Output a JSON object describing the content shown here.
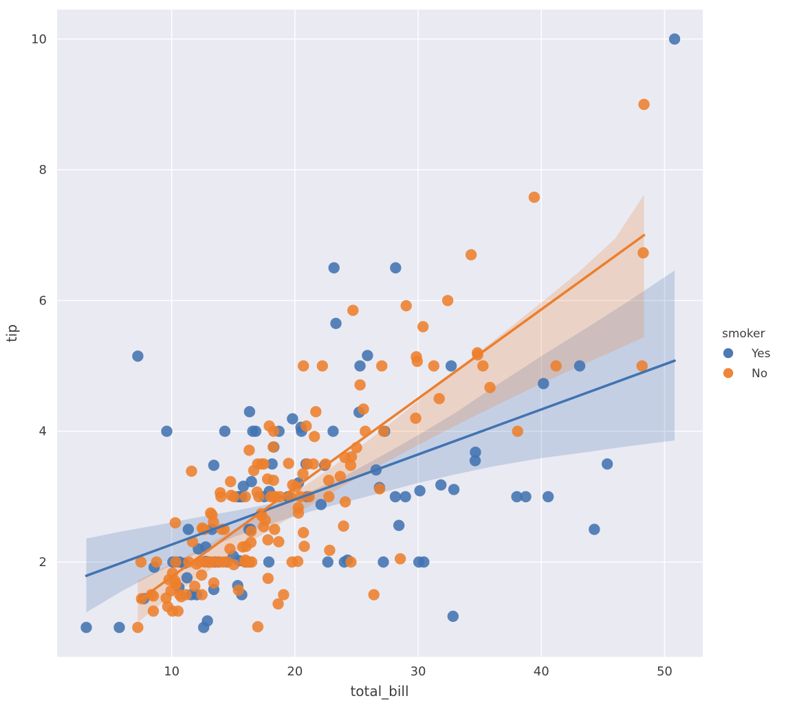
{
  "chart_data": {
    "type": "scatter",
    "title": "",
    "xlabel": "total_bill",
    "ylabel": "tip",
    "xlim": [
      0.7,
      53.1
    ],
    "ylim": [
      0.55,
      10.45
    ],
    "xticks": [
      10,
      20,
      30,
      40,
      50
    ],
    "yticks": [
      2,
      4,
      6,
      8,
      10
    ],
    "grid": true,
    "plot_bg": "#eaeaf2",
    "grid_color": "#ffffff",
    "legend": {
      "title": "smoker",
      "position": "right-outside",
      "entries": [
        {
          "label": "Yes",
          "color": "#4273b0"
        },
        {
          "label": "No",
          "color": "#ed7f2c"
        }
      ]
    },
    "series": [
      {
        "name": "Yes",
        "color": "#4273b0",
        "marker_opacity": 0.88,
        "regression_line": {
          "x1": 3.07,
          "y1": 1.79,
          "x2": 50.81,
          "y2": 5.08
        },
        "ci_band": [
          [
            3.07,
            1.23,
            2.36
          ],
          [
            6,
            1.56,
            2.47
          ],
          [
            9,
            1.86,
            2.57
          ],
          [
            12,
            2.13,
            2.68
          ],
          [
            15,
            2.38,
            2.78
          ],
          [
            18,
            2.58,
            2.89
          ],
          [
            21,
            2.76,
            3.06
          ],
          [
            24,
            2.91,
            3.31
          ],
          [
            27,
            3.06,
            3.62
          ],
          [
            30,
            3.21,
            3.94
          ],
          [
            33,
            3.34,
            4.28
          ],
          [
            36,
            3.46,
            4.66
          ],
          [
            40,
            3.59,
            5.15
          ],
          [
            44,
            3.69,
            5.62
          ],
          [
            47,
            3.77,
            5.98
          ],
          [
            50.81,
            3.86,
            6.46
          ]
        ],
        "points": [
          [
            38.01,
            3.0
          ],
          [
            11.24,
            1.76
          ],
          [
            20.29,
            3.21
          ],
          [
            13.81,
            2.0
          ],
          [
            11.02,
            1.98
          ],
          [
            18.29,
            3.76
          ],
          [
            3.07,
            1.0
          ],
          [
            15.01,
            2.09
          ],
          [
            26.86,
            3.14
          ],
          [
            25.28,
            5.0
          ],
          [
            17.92,
            3.08
          ],
          [
            19.44,
            3.0
          ],
          [
            32.68,
            5.0
          ],
          [
            28.97,
            3.0
          ],
          [
            5.75,
            1.0
          ],
          [
            16.32,
            4.3
          ],
          [
            40.17,
            4.73
          ],
          [
            27.28,
            4.0
          ],
          [
            12.03,
            1.5
          ],
          [
            21.01,
            3.0
          ],
          [
            11.35,
            2.5
          ],
          [
            15.38,
            3.0
          ],
          [
            44.3,
            2.5
          ],
          [
            22.42,
            3.48
          ],
          [
            15.36,
            1.64
          ],
          [
            20.49,
            4.06
          ],
          [
            25.21,
            4.29
          ],
          [
            14.31,
            4.0
          ],
          [
            10.59,
            1.61
          ],
          [
            10.63,
            2.0
          ],
          [
            50.81,
            10.0
          ],
          [
            15.81,
            3.16
          ],
          [
            7.25,
            5.15
          ],
          [
            31.85,
            3.18
          ],
          [
            16.82,
            4.0
          ],
          [
            32.9,
            3.11
          ],
          [
            17.89,
            2.0
          ],
          [
            14.48,
            2.0
          ],
          [
            9.6,
            4.0
          ],
          [
            34.63,
            3.55
          ],
          [
            34.65,
            3.68
          ],
          [
            23.33,
            5.65
          ],
          [
            45.35,
            3.5
          ],
          [
            23.17,
            6.5
          ],
          [
            40.55,
            3.0
          ],
          [
            20.9,
            3.5
          ],
          [
            30.46,
            2.0
          ],
          [
            18.15,
            3.5
          ],
          [
            23.1,
            4.0
          ],
          [
            15.69,
            1.5
          ],
          [
            19.81,
            4.19
          ],
          [
            28.44,
            2.56
          ],
          [
            15.48,
            2.02
          ],
          [
            16.58,
            4.0
          ],
          [
            10.34,
            2.0
          ],
          [
            43.11,
            5.0
          ],
          [
            13.0,
            2.0
          ],
          [
            13.51,
            2.0
          ],
          [
            18.71,
            4.0
          ],
          [
            12.74,
            2.01
          ],
          [
            13.0,
            2.0
          ],
          [
            16.4,
            2.5
          ],
          [
            20.53,
            4.0
          ],
          [
            16.47,
            3.23
          ],
          [
            26.59,
            3.41
          ],
          [
            38.73,
            3.0
          ],
          [
            24.27,
            2.03
          ],
          [
            12.76,
            2.23
          ],
          [
            30.06,
            2.0
          ],
          [
            25.89,
            5.16
          ],
          [
            13.27,
            2.5
          ],
          [
            28.17,
            6.5
          ],
          [
            12.9,
            1.1
          ],
          [
            28.15,
            3.0
          ],
          [
            11.59,
            1.5
          ],
          [
            7.74,
            1.44
          ],
          [
            30.14,
            3.09
          ],
          [
            12.16,
            2.2
          ],
          [
            13.42,
            3.48
          ],
          [
            8.58,
            1.92
          ],
          [
            13.42,
            1.58
          ],
          [
            16.27,
            2.5
          ],
          [
            10.09,
            2.0
          ],
          [
            22.12,
            2.88
          ],
          [
            24.01,
            2.0
          ],
          [
            15.69,
            3.0
          ],
          [
            15.53,
            3.0
          ],
          [
            12.6,
            1.0
          ],
          [
            32.83,
            1.17
          ],
          [
            27.18,
            2.0
          ],
          [
            22.67,
            2.0
          ],
          [
            17.51,
            3.0
          ],
          [
            16.0,
            2.0
          ]
        ]
      },
      {
        "name": "No",
        "color": "#ed7f2c",
        "marker_opacity": 0.88,
        "regression_line": {
          "x1": 7.25,
          "y1": 1.4,
          "x2": 48.33,
          "y2": 7.0
        },
        "ci_band": [
          [
            7.25,
            1.08,
            1.72
          ],
          [
            9,
            1.34,
            1.88
          ],
          [
            11,
            1.61,
            2.07
          ],
          [
            13,
            1.87,
            2.27
          ],
          [
            15,
            2.13,
            2.49
          ],
          [
            17,
            2.38,
            2.72
          ],
          [
            19,
            2.61,
            2.95
          ],
          [
            21,
            2.84,
            3.19
          ],
          [
            23,
            3.06,
            3.45
          ],
          [
            25,
            3.28,
            3.72
          ],
          [
            27,
            3.49,
            4.01
          ],
          [
            29,
            3.69,
            4.31
          ],
          [
            31,
            3.89,
            4.62
          ],
          [
            34,
            4.18,
            5.07
          ],
          [
            37,
            4.46,
            5.52
          ],
          [
            40,
            4.73,
            5.97
          ],
          [
            43,
            4.99,
            6.43
          ],
          [
            46,
            5.24,
            6.95
          ],
          [
            48.33,
            5.44,
            7.62
          ]
        ],
        "points": [
          [
            16.99,
            1.01
          ],
          [
            10.34,
            1.66
          ],
          [
            21.01,
            3.5
          ],
          [
            23.68,
            3.31
          ],
          [
            24.59,
            3.61
          ],
          [
            25.29,
            4.71
          ],
          [
            8.77,
            2.0
          ],
          [
            26.88,
            3.12
          ],
          [
            15.04,
            1.96
          ],
          [
            14.78,
            3.23
          ],
          [
            10.27,
            1.71
          ],
          [
            35.26,
            5.0
          ],
          [
            15.42,
            1.57
          ],
          [
            18.43,
            3.0
          ],
          [
            14.83,
            3.02
          ],
          [
            21.58,
            3.92
          ],
          [
            10.33,
            1.67
          ],
          [
            16.29,
            3.71
          ],
          [
            16.97,
            3.5
          ],
          [
            20.65,
            3.35
          ],
          [
            17.92,
            4.08
          ],
          [
            20.29,
            2.75
          ],
          [
            15.77,
            2.23
          ],
          [
            39.42,
            7.58
          ],
          [
            19.82,
            3.18
          ],
          [
            17.81,
            2.34
          ],
          [
            13.37,
            2.0
          ],
          [
            12.69,
            2.0
          ],
          [
            21.7,
            4.3
          ],
          [
            19.65,
            3.0
          ],
          [
            9.55,
            1.45
          ],
          [
            18.35,
            2.5
          ],
          [
            15.06,
            3.0
          ],
          [
            20.69,
            2.45
          ],
          [
            17.78,
            3.27
          ],
          [
            24.06,
            3.6
          ],
          [
            16.31,
            2.0
          ],
          [
            16.93,
            3.07
          ],
          [
            18.69,
            2.31
          ],
          [
            31.27,
            5.0
          ],
          [
            16.04,
            2.24
          ],
          [
            17.46,
            2.54
          ],
          [
            13.94,
            3.06
          ],
          [
            9.68,
            1.32
          ],
          [
            30.4,
            5.6
          ],
          [
            18.29,
            3.0
          ],
          [
            22.23,
            5.0
          ],
          [
            32.4,
            6.0
          ],
          [
            28.55,
            2.05
          ],
          [
            18.04,
            3.0
          ],
          [
            12.54,
            2.5
          ],
          [
            10.29,
            2.6
          ],
          [
            34.81,
            5.2
          ],
          [
            9.94,
            1.56
          ],
          [
            25.56,
            4.34
          ],
          [
            19.49,
            3.51
          ],
          [
            26.41,
            1.5
          ],
          [
            48.27,
            6.73
          ],
          [
            17.59,
            2.64
          ],
          [
            20.08,
            3.15
          ],
          [
            16.45,
            2.47
          ],
          [
            20.23,
            2.01
          ],
          [
            12.02,
            1.97
          ],
          [
            17.07,
            3.0
          ],
          [
            14.73,
            2.2
          ],
          [
            10.51,
            1.25
          ],
          [
            27.2,
            4.0
          ],
          [
            22.76,
            3.0
          ],
          [
            17.29,
            2.71
          ],
          [
            16.66,
            3.4
          ],
          [
            10.07,
            1.83
          ],
          [
            15.98,
            2.03
          ],
          [
            34.83,
            5.17
          ],
          [
            13.03,
            2.0
          ],
          [
            18.28,
            4.0
          ],
          [
            24.71,
            5.85
          ],
          [
            21.16,
            3.0
          ],
          [
            22.49,
            3.5
          ],
          [
            22.75,
            3.25
          ],
          [
            12.46,
            1.5
          ],
          [
            20.92,
            4.08
          ],
          [
            18.24,
            3.76
          ],
          [
            14.0,
            3.0
          ],
          [
            7.25,
            1.0
          ],
          [
            38.07,
            4.0
          ],
          [
            23.95,
            2.55
          ],
          [
            25.71,
            4.0
          ],
          [
            17.31,
            3.5
          ],
          [
            29.93,
            5.07
          ],
          [
            10.65,
            1.5
          ],
          [
            12.43,
            1.8
          ],
          [
            24.08,
            2.92
          ],
          [
            11.69,
            2.31
          ],
          [
            13.42,
            1.68
          ],
          [
            14.26,
            2.5
          ],
          [
            15.95,
            2.0
          ],
          [
            12.48,
            2.52
          ],
          [
            29.8,
            4.2
          ],
          [
            8.52,
            1.48
          ],
          [
            14.52,
            2.0
          ],
          [
            11.38,
            2.0
          ],
          [
            22.82,
            2.18
          ],
          [
            19.08,
            1.5
          ],
          [
            20.27,
            2.83
          ],
          [
            11.17,
            1.5
          ],
          [
            12.26,
            2.0
          ],
          [
            18.26,
            3.25
          ],
          [
            8.51,
            1.25
          ],
          [
            10.33,
            2.0
          ],
          [
            14.15,
            2.0
          ],
          [
            13.16,
            2.75
          ],
          [
            17.47,
            3.5
          ],
          [
            34.3,
            6.7
          ],
          [
            41.19,
            5.0
          ],
          [
            27.05,
            5.0
          ],
          [
            16.43,
            2.3
          ],
          [
            8.35,
            1.5
          ],
          [
            18.64,
            1.36
          ],
          [
            11.87,
            1.63
          ],
          [
            9.78,
            1.73
          ],
          [
            7.51,
            2.0
          ],
          [
            14.07,
            2.5
          ],
          [
            13.13,
            2.0
          ],
          [
            17.26,
            2.74
          ],
          [
            24.55,
            2.0
          ],
          [
            19.77,
            2.0
          ],
          [
            29.85,
            5.14
          ],
          [
            48.17,
            5.0
          ],
          [
            25.0,
            3.75
          ],
          [
            13.39,
            2.61
          ],
          [
            16.49,
            2.0
          ],
          [
            21.5,
            3.5
          ],
          [
            12.66,
            2.5
          ],
          [
            16.21,
            2.0
          ],
          [
            13.81,
            2.0
          ],
          [
            24.52,
            3.48
          ],
          [
            20.76,
            2.24
          ],
          [
            31.71,
            4.5
          ],
          [
            20.69,
            5.0
          ],
          [
            7.56,
            1.44
          ],
          [
            48.33,
            9.0
          ],
          [
            15.98,
            3.0
          ],
          [
            20.45,
            3.0
          ],
          [
            13.28,
            2.72
          ],
          [
            11.61,
            3.39
          ],
          [
            10.77,
            1.47
          ],
          [
            10.07,
            1.25
          ],
          [
            35.83,
            4.67
          ],
          [
            29.03,
            5.92
          ],
          [
            17.82,
            1.75
          ],
          [
            18.78,
            3.0
          ]
        ]
      }
    ]
  }
}
